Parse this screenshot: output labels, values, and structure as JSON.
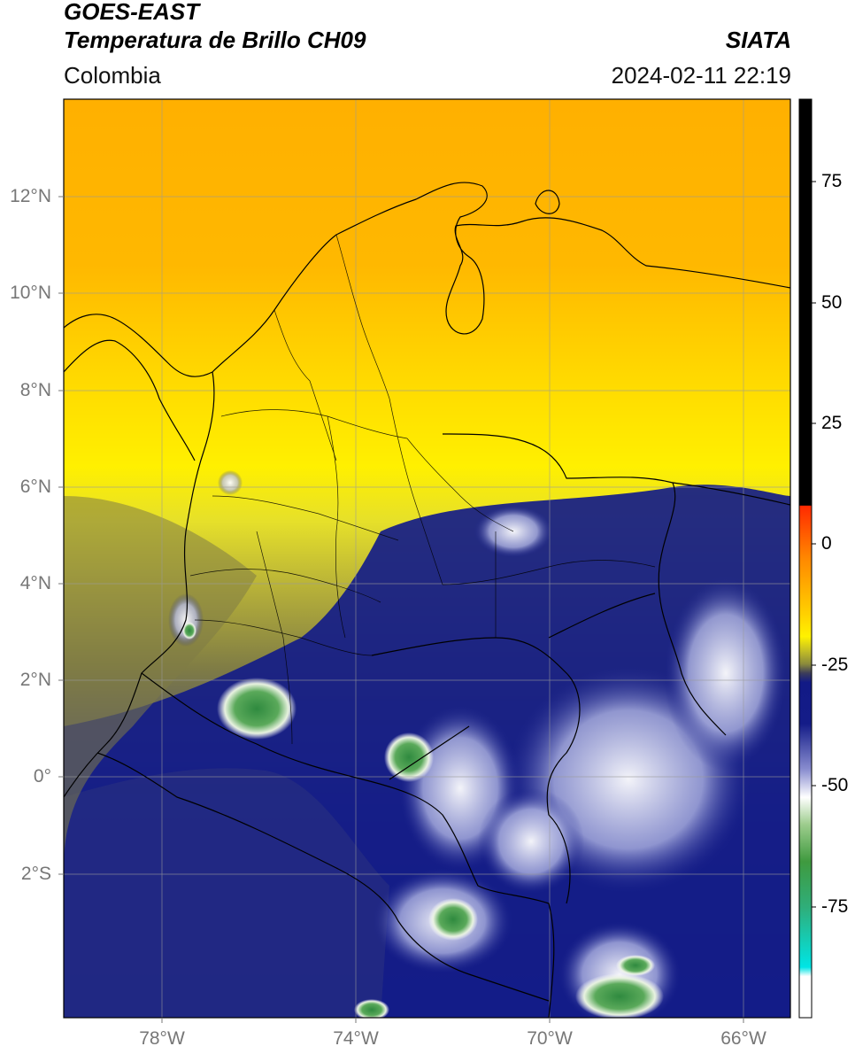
{
  "header": {
    "satellite": "GOES-EAST",
    "product": "Temperatura de Brillo CH09",
    "region": "Colombia",
    "organization": "SIATA",
    "timestamp": "2024-02-11 22:19"
  },
  "map": {
    "lat_ticks": [
      "12°N",
      "10°N",
      "8°N",
      "6°N",
      "4°N",
      "2°N",
      "0°",
      "2°S"
    ],
    "lon_ticks": [
      "78°W",
      "74°W",
      "70°W",
      "66°W"
    ],
    "lat_range": [
      -4.8,
      14.0
    ],
    "lon_range": [
      -80.0,
      -65.0
    ]
  },
  "colorbar": {
    "ticks": [
      "75",
      "50",
      "25",
      "0",
      "-25",
      "-50",
      "-75"
    ],
    "colors": {
      "hot": "#000000",
      "warm": "#ff2a00",
      "orange": "#ffa000",
      "yellow": "#fff200",
      "olive": "#8a8a3c",
      "navy": "#121a86",
      "white": "#ffffff",
      "green": "#3f9a3f",
      "cyan": "#00e5e5"
    }
  }
}
